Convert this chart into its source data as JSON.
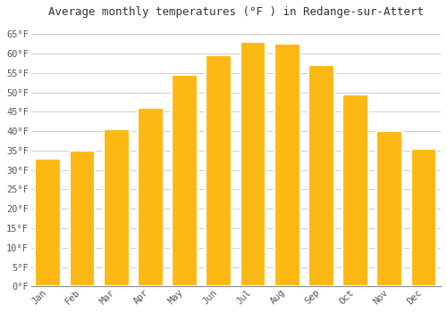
{
  "title": "Average monthly temperatures (°F ) in Redange-sur-Attert",
  "months": [
    "Jan",
    "Feb",
    "Mar",
    "Apr",
    "May",
    "Jun",
    "Jul",
    "Aug",
    "Sep",
    "Oct",
    "Nov",
    "Dec"
  ],
  "values": [
    33,
    35,
    40.5,
    46,
    54.5,
    59.5,
    63,
    62.5,
    57,
    49.5,
    40,
    35.5
  ],
  "bar_color": "#FDB913",
  "bar_edge_color": "#F5C842",
  "bar_edge_color_dark": "#E8A000",
  "background_color": "#FFFFFF",
  "grid_color": "#CCCCCC",
  "ylim": [
    0,
    68
  ],
  "yticks": [
    0,
    5,
    10,
    15,
    20,
    25,
    30,
    35,
    40,
    45,
    50,
    55,
    60,
    65
  ],
  "title_fontsize": 9,
  "tick_fontsize": 7.5,
  "font_family": "monospace"
}
